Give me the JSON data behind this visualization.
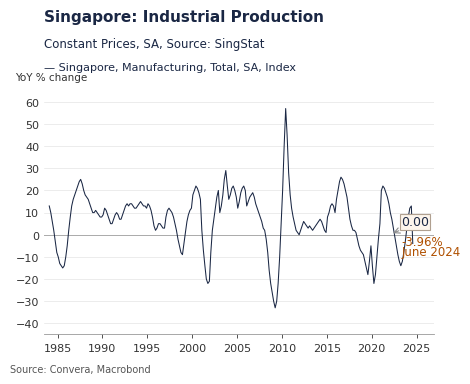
{
  "title": "Singapore: Industrial Production",
  "subtitle": "Constant Prices, SA, Source: SingStat",
  "legend_label": "Singapore, Manufacturing, Total, SA, Index",
  "ylabel": "YoY % change",
  "source_text": "Source: Convera, Macrobond",
  "xlim": [
    1983.5,
    2027.0
  ],
  "ylim": [
    -45,
    68
  ],
  "yticks": [
    -40,
    -30,
    -20,
    -10,
    0,
    10,
    20,
    30,
    40,
    50,
    60
  ],
  "xticks": [
    1985,
    1990,
    1995,
    2000,
    2005,
    2010,
    2015,
    2020,
    2025
  ],
  "line_color": "#1a2744",
  "annotation_box_facecolor": "#fdf5ec",
  "annotation_box_edgecolor": "#b0a090",
  "annotation_value": "0.00",
  "annotation_latest_line1": "-3.96%",
  "annotation_latest_line2": "June 2024",
  "title_color": "#1a2744",
  "subtitle_color": "#1a2744",
  "legend_color": "#1a2744",
  "annotation_text_color": "#1a2744",
  "annotation_latest_color": "#b05000",
  "background_color": "#ffffff",
  "grid_color": "#dddddd",
  "zero_line_color": "#aaaaaa",
  "years": [
    1984.08,
    1984.25,
    1984.42,
    1984.58,
    1984.75,
    1984.92,
    1985.08,
    1985.25,
    1985.42,
    1985.58,
    1985.75,
    1985.92,
    1986.08,
    1986.25,
    1986.42,
    1986.58,
    1986.75,
    1986.92,
    1987.08,
    1987.25,
    1987.42,
    1987.58,
    1987.75,
    1987.92,
    1988.08,
    1988.25,
    1988.42,
    1988.58,
    1988.75,
    1988.92,
    1989.08,
    1989.25,
    1989.42,
    1989.58,
    1989.75,
    1989.92,
    1990.08,
    1990.25,
    1990.42,
    1990.58,
    1990.75,
    1990.92,
    1991.08,
    1991.25,
    1991.42,
    1991.58,
    1991.75,
    1991.92,
    1992.08,
    1992.25,
    1992.42,
    1992.58,
    1992.75,
    1992.92,
    1993.08,
    1993.25,
    1993.42,
    1993.58,
    1993.75,
    1993.92,
    1994.08,
    1994.25,
    1994.42,
    1994.58,
    1994.75,
    1994.92,
    1995.08,
    1995.25,
    1995.42,
    1995.58,
    1995.75,
    1995.92,
    1996.08,
    1996.25,
    1996.42,
    1996.58,
    1996.75,
    1996.92,
    1997.08,
    1997.25,
    1997.42,
    1997.58,
    1997.75,
    1997.92,
    1998.08,
    1998.25,
    1998.42,
    1998.58,
    1998.75,
    1998.92,
    1999.08,
    1999.25,
    1999.42,
    1999.58,
    1999.75,
    1999.92,
    2000.08,
    2000.25,
    2000.42,
    2000.58,
    2000.75,
    2000.92,
    2001.08,
    2001.25,
    2001.42,
    2001.58,
    2001.75,
    2001.92,
    2002.08,
    2002.25,
    2002.42,
    2002.58,
    2002.75,
    2002.92,
    2003.08,
    2003.25,
    2003.42,
    2003.58,
    2003.75,
    2003.92,
    2004.08,
    2004.25,
    2004.42,
    2004.58,
    2004.75,
    2004.92,
    2005.08,
    2005.25,
    2005.42,
    2005.58,
    2005.75,
    2005.92,
    2006.08,
    2006.25,
    2006.42,
    2006.58,
    2006.75,
    2006.92,
    2007.08,
    2007.25,
    2007.42,
    2007.58,
    2007.75,
    2007.92,
    2008.08,
    2008.25,
    2008.42,
    2008.58,
    2008.75,
    2008.92,
    2009.08,
    2009.25,
    2009.42,
    2009.58,
    2009.75,
    2009.92,
    2010.08,
    2010.25,
    2010.42,
    2010.58,
    2010.75,
    2010.92,
    2011.08,
    2011.25,
    2011.42,
    2011.58,
    2011.75,
    2011.92,
    2012.08,
    2012.25,
    2012.42,
    2012.58,
    2012.75,
    2012.92,
    2013.08,
    2013.25,
    2013.42,
    2013.58,
    2013.75,
    2013.92,
    2014.08,
    2014.25,
    2014.42,
    2014.58,
    2014.75,
    2014.92,
    2015.08,
    2015.25,
    2015.42,
    2015.58,
    2015.75,
    2015.92,
    2016.08,
    2016.25,
    2016.42,
    2016.58,
    2016.75,
    2016.92,
    2017.08,
    2017.25,
    2017.42,
    2017.58,
    2017.75,
    2017.92,
    2018.08,
    2018.25,
    2018.42,
    2018.58,
    2018.75,
    2018.92,
    2019.08,
    2019.25,
    2019.42,
    2019.58,
    2019.75,
    2019.92,
    2020.08,
    2020.25,
    2020.42,
    2020.58,
    2020.75,
    2020.92,
    2021.08,
    2021.25,
    2021.42,
    2021.58,
    2021.75,
    2021.92,
    2022.08,
    2022.25,
    2022.42,
    2022.58,
    2022.75,
    2022.92,
    2023.08,
    2023.25,
    2023.42,
    2023.58,
    2023.75,
    2023.92,
    2024.08,
    2024.25,
    2024.42,
    2024.58
  ],
  "values": [
    13.0,
    10.0,
    6.0,
    2.0,
    -3.0,
    -8.0,
    -10.0,
    -13.0,
    -14.0,
    -15.0,
    -14.0,
    -10.0,
    -5.0,
    2.0,
    8.0,
    13.0,
    16.0,
    18.0,
    20.0,
    22.0,
    24.0,
    25.0,
    23.0,
    20.0,
    18.0,
    17.0,
    16.0,
    14.0,
    12.0,
    10.0,
    10.0,
    11.0,
    10.0,
    9.0,
    8.0,
    8.0,
    9.0,
    12.0,
    11.0,
    9.0,
    7.0,
    5.0,
    5.0,
    7.0,
    9.0,
    10.0,
    9.0,
    7.0,
    7.0,
    9.0,
    11.0,
    13.0,
    14.0,
    13.0,
    14.0,
    14.0,
    13.0,
    12.0,
    12.0,
    13.0,
    14.0,
    15.0,
    14.0,
    13.0,
    13.0,
    12.0,
    14.0,
    13.0,
    11.0,
    8.0,
    4.0,
    2.0,
    3.0,
    5.0,
    5.0,
    4.0,
    3.0,
    3.0,
    8.0,
    11.0,
    12.0,
    11.0,
    10.0,
    8.0,
    5.0,
    2.0,
    -2.0,
    -5.0,
    -8.0,
    -9.0,
    -4.0,
    1.0,
    6.0,
    9.0,
    11.0,
    12.0,
    18.0,
    20.0,
    22.0,
    21.0,
    19.0,
    16.0,
    2.0,
    -7.0,
    -14.0,
    -20.0,
    -22.0,
    -21.0,
    -8.0,
    2.0,
    7.0,
    12.0,
    17.0,
    20.0,
    10.0,
    13.0,
    18.0,
    25.0,
    29.0,
    22.0,
    16.0,
    18.0,
    21.0,
    22.0,
    20.0,
    17.0,
    12.0,
    15.0,
    19.0,
    21.0,
    22.0,
    20.0,
    13.0,
    15.0,
    17.0,
    18.0,
    19.0,
    17.0,
    14.0,
    12.0,
    10.0,
    8.0,
    6.0,
    3.0,
    2.0,
    -2.0,
    -8.0,
    -16.0,
    -22.0,
    -26.0,
    -30.0,
    -33.0,
    -30.0,
    -22.0,
    -10.0,
    5.0,
    20.0,
    40.0,
    57.0,
    45.0,
    28.0,
    18.0,
    12.0,
    8.0,
    5.0,
    2.0,
    1.0,
    0.0,
    2.0,
    4.0,
    6.0,
    5.0,
    4.0,
    3.0,
    4.0,
    3.0,
    2.0,
    3.0,
    4.0,
    5.0,
    6.0,
    7.0,
    6.0,
    4.0,
    2.0,
    1.0,
    8.0,
    10.0,
    13.0,
    14.0,
    13.0,
    10.0,
    16.0,
    20.0,
    24.0,
    26.0,
    25.0,
    23.0,
    20.0,
    17.0,
    12.0,
    7.0,
    4.0,
    2.0,
    2.0,
    1.0,
    -2.0,
    -5.0,
    -7.0,
    -8.0,
    -9.0,
    -12.0,
    -15.0,
    -18.0,
    -12.0,
    -5.0,
    -14.0,
    -22.0,
    -18.0,
    -10.0,
    -2.0,
    5.0,
    20.0,
    22.0,
    21.0,
    19.0,
    17.0,
    14.0,
    10.0,
    7.0,
    3.0,
    -1.0,
    -5.0,
    -9.0,
    -12.0,
    -14.0,
    -12.0,
    -8.0,
    -3.0,
    3.0,
    8.0,
    12.0,
    13.0,
    -3.96
  ]
}
